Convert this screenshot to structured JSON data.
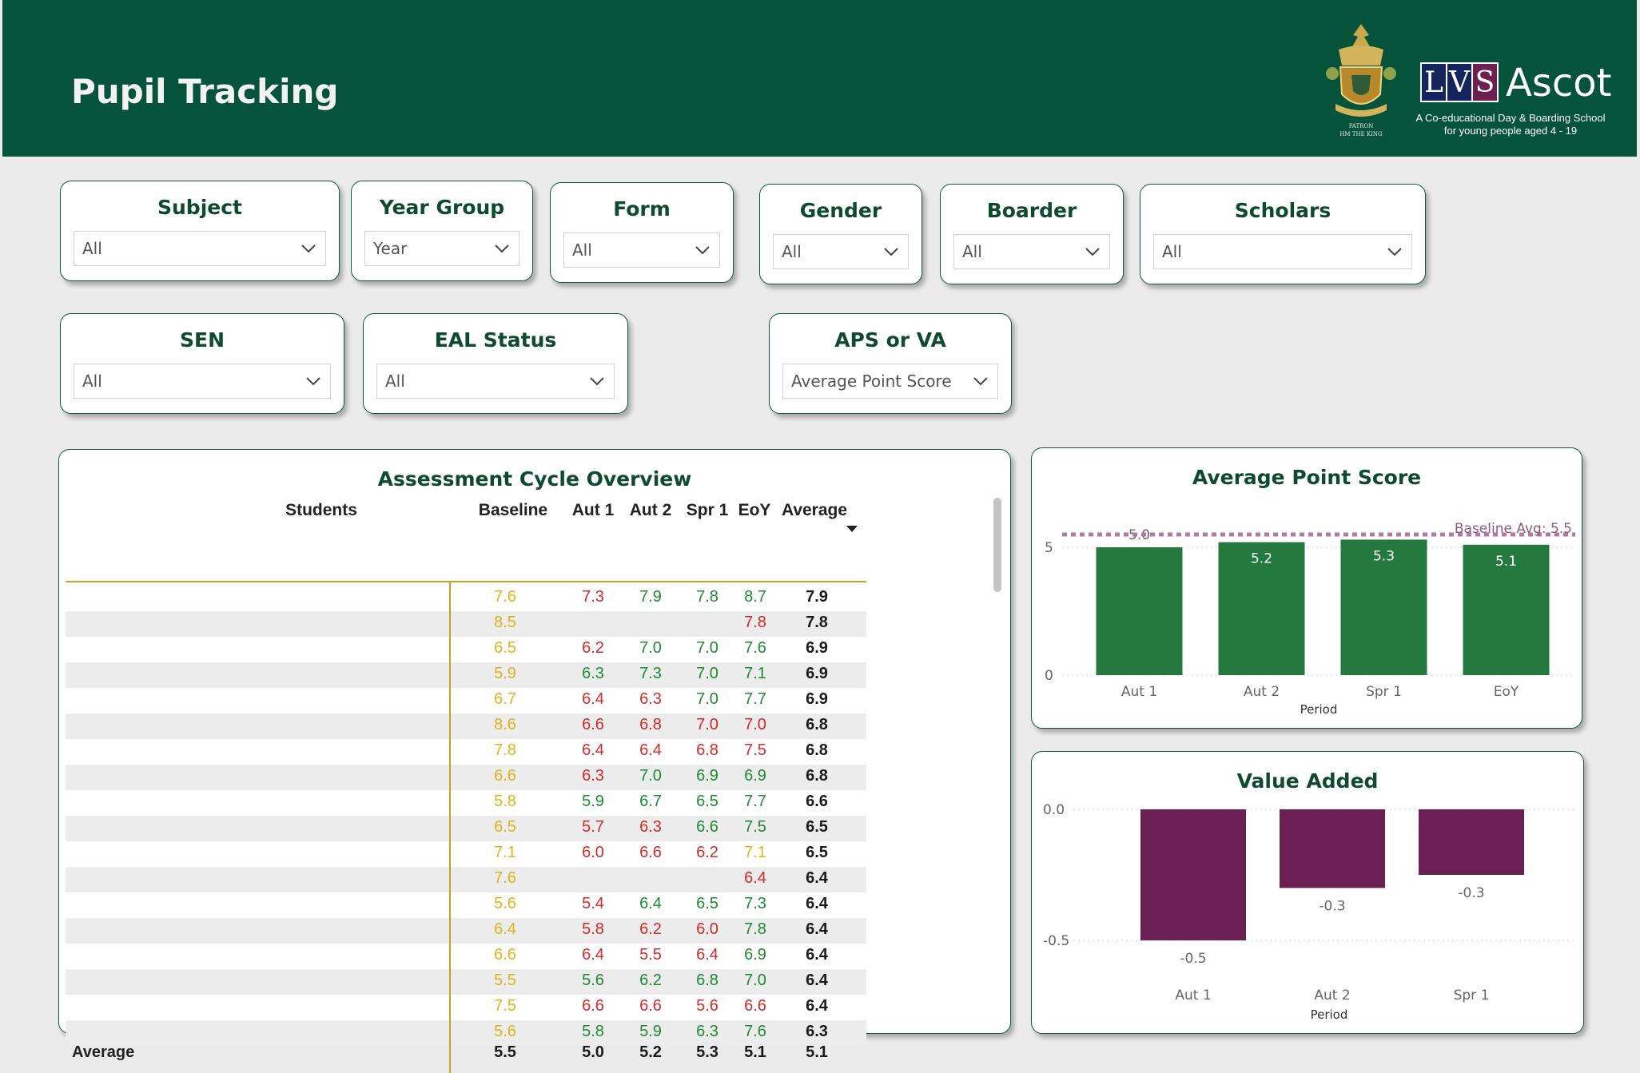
{
  "header": {
    "title": "Pupil Tracking"
  },
  "logo": {
    "letters": [
      "L",
      "V",
      "S"
    ],
    "name": "Ascot",
    "tagline": "A Co-educational Day & Boarding School",
    "tagline2": "for young people aged 4 - 19",
    "crest_caption": "PATRON",
    "crest_caption2": "HM THE KING"
  },
  "filters": [
    {
      "label": "Subject",
      "value": "All"
    },
    {
      "label": "Year Group",
      "value": "Year"
    },
    {
      "label": "Form",
      "value": "All"
    },
    {
      "label": "Gender",
      "value": "All"
    },
    {
      "label": "Boarder",
      "value": "All"
    },
    {
      "label": "Scholars",
      "value": "All"
    },
    {
      "label": "SEN",
      "value": "All"
    },
    {
      "label": "EAL Status",
      "value": "All"
    },
    {
      "label": "APS or VA",
      "value": "Average Point Score"
    }
  ],
  "overview": {
    "title": "Assessment Cycle Overview",
    "columns": [
      "Students",
      "Baseline",
      "Aut 1",
      "Aut 2",
      "Spr 1",
      "EoY",
      "Average"
    ],
    "rows": [
      [
        "7.6",
        "7.3",
        "7.9",
        "7.8",
        "8.7",
        "7.9"
      ],
      [
        "8.5",
        "",
        "",
        "",
        "7.8",
        "7.8"
      ],
      [
        "6.5",
        "6.2",
        "7.0",
        "7.0",
        "7.6",
        "6.9"
      ],
      [
        "5.9",
        "6.3",
        "7.3",
        "7.0",
        "7.1",
        "6.9"
      ],
      [
        "6.7",
        "6.4",
        "6.3",
        "7.0",
        "7.7",
        "6.9"
      ],
      [
        "8.6",
        "6.6",
        "6.8",
        "7.0",
        "7.0",
        "6.8"
      ],
      [
        "7.8",
        "6.4",
        "6.4",
        "6.8",
        "7.5",
        "6.8"
      ],
      [
        "6.6",
        "6.3",
        "7.0",
        "6.9",
        "6.9",
        "6.8"
      ],
      [
        "5.8",
        "5.9",
        "6.7",
        "6.5",
        "7.7",
        "6.6"
      ],
      [
        "6.5",
        "5.7",
        "6.3",
        "6.6",
        "7.5",
        "6.5"
      ],
      [
        "7.1",
        "6.0",
        "6.6",
        "6.2",
        "7.1",
        "6.5"
      ],
      [
        "7.6",
        "",
        "",
        "",
        "6.4",
        "6.4"
      ],
      [
        "5.6",
        "5.4",
        "6.4",
        "6.5",
        "7.3",
        "6.4"
      ],
      [
        "6.4",
        "5.8",
        "6.2",
        "6.0",
        "7.8",
        "6.4"
      ],
      [
        "6.6",
        "6.4",
        "5.5",
        "6.4",
        "6.9",
        "6.4"
      ],
      [
        "5.5",
        "5.6",
        "6.2",
        "6.8",
        "7.0",
        "6.4"
      ],
      [
        "7.5",
        "6.6",
        "6.6",
        "5.6",
        "6.6",
        "6.4"
      ],
      [
        "5.6",
        "5.8",
        "5.9",
        "6.3",
        "7.6",
        "6.3"
      ]
    ],
    "row_colors": [
      [
        "y",
        "r",
        "g",
        "g",
        "g"
      ],
      [
        "y",
        "",
        "",
        "",
        "r"
      ],
      [
        "y",
        "r",
        "g",
        "g",
        "g"
      ],
      [
        "y",
        "g",
        "g",
        "g",
        "g"
      ],
      [
        "y",
        "r",
        "r",
        "g",
        "g"
      ],
      [
        "y",
        "r",
        "r",
        "r",
        "r"
      ],
      [
        "y",
        "r",
        "r",
        "r",
        "r"
      ],
      [
        "y",
        "r",
        "g",
        "g",
        "g"
      ],
      [
        "y",
        "g",
        "g",
        "g",
        "g"
      ],
      [
        "y",
        "r",
        "r",
        "g",
        "g"
      ],
      [
        "y",
        "r",
        "r",
        "r",
        "y"
      ],
      [
        "y",
        "",
        "",
        "",
        "r"
      ],
      [
        "y",
        "r",
        "g",
        "g",
        "g"
      ],
      [
        "y",
        "r",
        "r",
        "r",
        "g"
      ],
      [
        "y",
        "r",
        "r",
        "r",
        "g"
      ],
      [
        "y",
        "g",
        "g",
        "g",
        "g"
      ],
      [
        "y",
        "r",
        "r",
        "r",
        "r"
      ],
      [
        "y",
        "g",
        "g",
        "g",
        "g"
      ]
    ],
    "total_label": "Average",
    "totals": [
      "5.5",
      "5.0",
      "5.2",
      "5.3",
      "5.1",
      "5.1"
    ]
  },
  "chart_data": [
    {
      "type": "bar",
      "title": "Average Point Score",
      "categories": [
        "Aut 1",
        "Aut 2",
        "Spr 1",
        "EoY"
      ],
      "values": [
        5.0,
        5.2,
        5.3,
        5.1
      ],
      "labels": [
        "5.0",
        "5.2",
        "5.3",
        "5.1"
      ],
      "xlabel": "Period",
      "ylabel": "",
      "ylim": [
        0,
        5.5
      ],
      "yticks": [
        "5",
        "0"
      ],
      "reference_line": {
        "label": "Baseline Avg: 5.5",
        "value": 5.5,
        "color": "#b07aa6"
      },
      "bar_color": "#247a3e"
    },
    {
      "type": "bar",
      "title": "Value Added",
      "categories": [
        "Aut 1",
        "Aut 2",
        "Spr 1"
      ],
      "values": [
        -0.5,
        -0.3,
        -0.25
      ],
      "labels": [
        "-0.5",
        "-0.3",
        "-0.3"
      ],
      "xlabel": "Period",
      "ylabel": "",
      "ylim": [
        -0.5,
        0.0
      ],
      "yticks": [
        "0.0",
        "-0.5"
      ],
      "bar_color": "#6c1f52"
    }
  ]
}
